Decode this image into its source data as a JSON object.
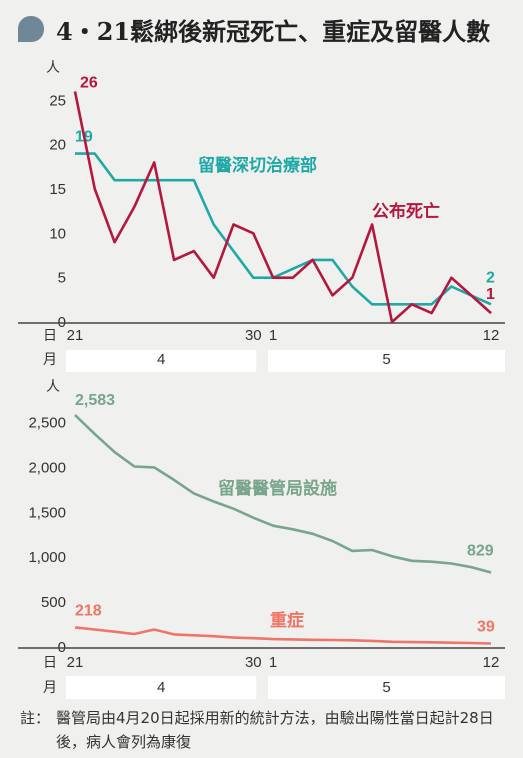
{
  "header": {
    "title": "4‧21鬆綁後新冠死亡、重症及留醫人數"
  },
  "note": {
    "marker": "註：",
    "text": "醫管局由4月20日起採用新的統計方法，由驗出陽性當日起計28日後，病人會列為康復"
  },
  "colors": {
    "teal": "#1fa9a6",
    "crimson": "#b5173d",
    "sage": "#78a58b",
    "salmon": "#ef7567",
    "axis": "#444444",
    "band": "#ffffff"
  },
  "chart_data": [
    {
      "type": "line",
      "ylabel": "人",
      "ylim": [
        0,
        26
      ],
      "yticks": [
        0,
        5,
        10,
        15,
        20,
        25
      ],
      "x": [
        21,
        22,
        23,
        24,
        25,
        26,
        27,
        28,
        29,
        30,
        1,
        2,
        3,
        4,
        5,
        6,
        7,
        8,
        9,
        10,
        11,
        12
      ],
      "xlabel_row": "日",
      "month_row": "月",
      "x_tick_labels": [
        {
          "index": 0,
          "label": "21"
        },
        {
          "index": 9,
          "label": "30"
        },
        {
          "index": 10,
          "label": "1"
        },
        {
          "index": 21,
          "label": "12"
        }
      ],
      "months": [
        {
          "label": "4",
          "from": 0,
          "to": 9
        },
        {
          "label": "5",
          "from": 10,
          "to": 21
        }
      ],
      "series": [
        {
          "name": "留醫深切治療部",
          "color_key": "teal",
          "start_label": "19",
          "end_label": "2",
          "values": [
            19,
            19,
            16,
            16,
            16,
            16,
            16,
            11,
            8,
            5,
            5,
            6,
            7,
            7,
            4,
            2,
            2,
            2,
            2,
            4,
            3,
            2
          ]
        },
        {
          "name": "公布死亡",
          "color_key": "crimson",
          "start_label": "26",
          "end_label": "1",
          "values": [
            26,
            15,
            9,
            13,
            18,
            7,
            8,
            5,
            11,
            10,
            5,
            5,
            7,
            3,
            5,
            11,
            0,
            2,
            1,
            5,
            3,
            1
          ]
        }
      ]
    },
    {
      "type": "line",
      "ylabel": "人",
      "ylim": [
        0,
        2583
      ],
      "yticks": [
        0,
        500,
        1000,
        1500,
        2000,
        2500
      ],
      "ytick_labels": [
        "0",
        "500",
        "1,000",
        "1,500",
        "2,000",
        "2,500"
      ],
      "x": [
        21,
        22,
        23,
        24,
        25,
        26,
        27,
        28,
        29,
        30,
        1,
        2,
        3,
        4,
        5,
        6,
        7,
        8,
        9,
        10,
        11,
        12
      ],
      "xlabel_row": "日",
      "month_row": "月",
      "x_tick_labels": [
        {
          "index": 0,
          "label": "21"
        },
        {
          "index": 9,
          "label": "30"
        },
        {
          "index": 10,
          "label": "1"
        },
        {
          "index": 21,
          "label": "12"
        }
      ],
      "months": [
        {
          "label": "4",
          "from": 0,
          "to": 9
        },
        {
          "label": "5",
          "from": 10,
          "to": 21
        }
      ],
      "series": [
        {
          "name": "留醫醫管局設施",
          "color_key": "sage",
          "start_label": "2,583",
          "end_label": "829",
          "values": [
            2583,
            2370,
            2170,
            2010,
            2000,
            1860,
            1710,
            1620,
            1540,
            1440,
            1350,
            1310,
            1260,
            1180,
            1070,
            1080,
            1010,
            960,
            950,
            930,
            890,
            829
          ]
        },
        {
          "name": "重症",
          "color_key": "salmon",
          "start_label": "218",
          "end_label": "39",
          "values": [
            218,
            195,
            170,
            145,
            195,
            140,
            130,
            120,
            105,
            98,
            88,
            85,
            80,
            78,
            75,
            68,
            58,
            55,
            52,
            48,
            45,
            39
          ]
        }
      ]
    }
  ]
}
